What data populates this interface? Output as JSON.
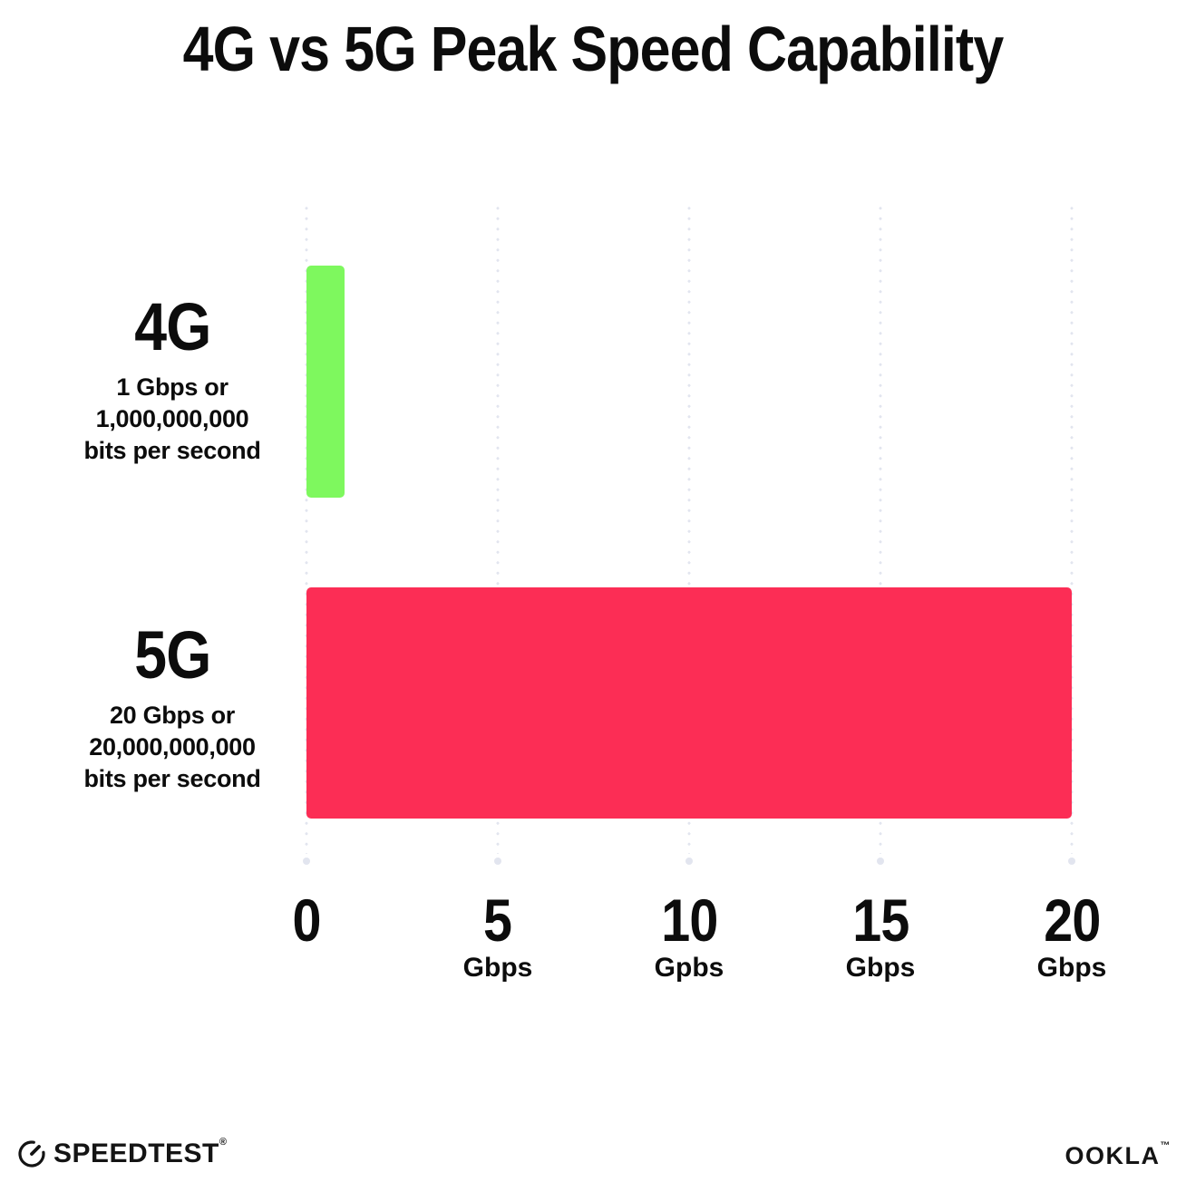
{
  "title": "4G vs 5G Peak Speed Capability",
  "chart_data": {
    "type": "bar",
    "orientation": "horizontal",
    "title": "4G vs 5G Peak Speed Capability",
    "categories": [
      "4G",
      "5G"
    ],
    "values": [
      1,
      20
    ],
    "unit": "Gbps",
    "xlim": [
      0,
      20
    ],
    "grid": "dotted-vertical-gridlines",
    "legend": "none",
    "bars": [
      {
        "label": "4G",
        "value": 1,
        "color": "#7ef85e",
        "description_lines": [
          "1 Gbps or",
          "1,000,000,000",
          "bits per second"
        ]
      },
      {
        "label": "5G",
        "value": 20,
        "color": "#fc2d55",
        "description_lines": [
          "20 Gbps or",
          "20,000,000,000",
          "bits per second"
        ]
      }
    ],
    "x_ticks": [
      {
        "value": 0,
        "label": "0",
        "sublabel": ""
      },
      {
        "value": 5,
        "label": "5",
        "sublabel": "Gbps"
      },
      {
        "value": 10,
        "label": "10",
        "sublabel": "Gpbs"
      },
      {
        "value": 15,
        "label": "15",
        "sublabel": "Gbps"
      },
      {
        "value": 20,
        "label": "20",
        "sublabel": "Gbps"
      }
    ]
  },
  "colors": {
    "bar_4g": "#7ef85e",
    "bar_5g": "#fc2d55",
    "grid_dot": "#e2e5ef",
    "text": "#0c0c0c",
    "background": "#ffffff"
  },
  "footer": {
    "speedtest_label": "SPEEDTEST",
    "speedtest_mark": "®",
    "speedtest_icon": "gauge-icon",
    "ookla_label": "OOKLA",
    "ookla_mark": "™"
  }
}
